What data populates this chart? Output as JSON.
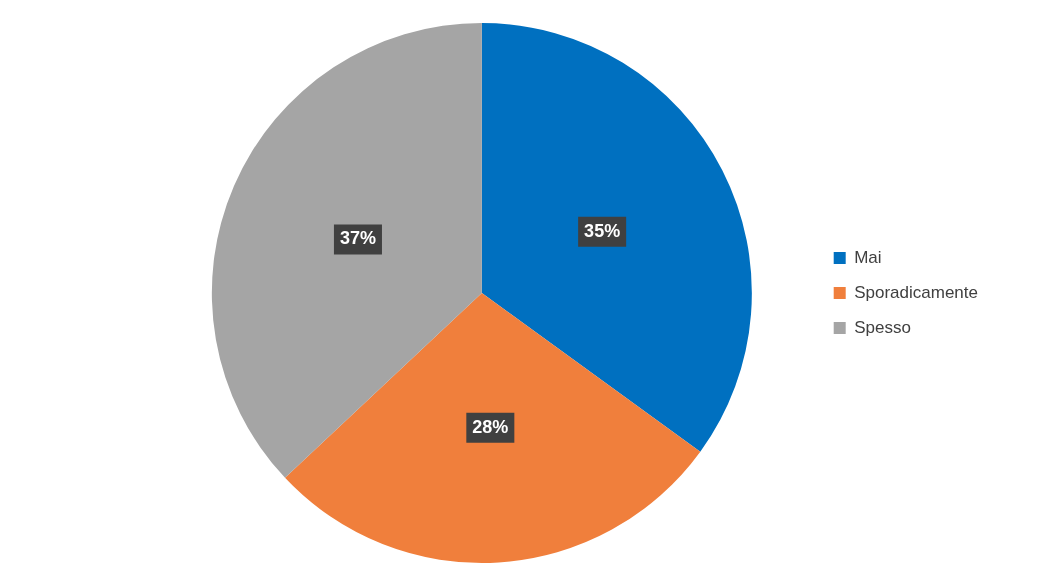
{
  "chart_data": {
    "type": "pie",
    "categories": [
      "Mai",
      "Sporadicamente",
      "Spesso"
    ],
    "values": [
      35,
      28,
      37
    ],
    "colors": [
      "#0070c0",
      "#f07f3c",
      "#a5a5a5"
    ],
    "value_labels": [
      "35%",
      "28%",
      "37%"
    ],
    "legend": "right"
  }
}
